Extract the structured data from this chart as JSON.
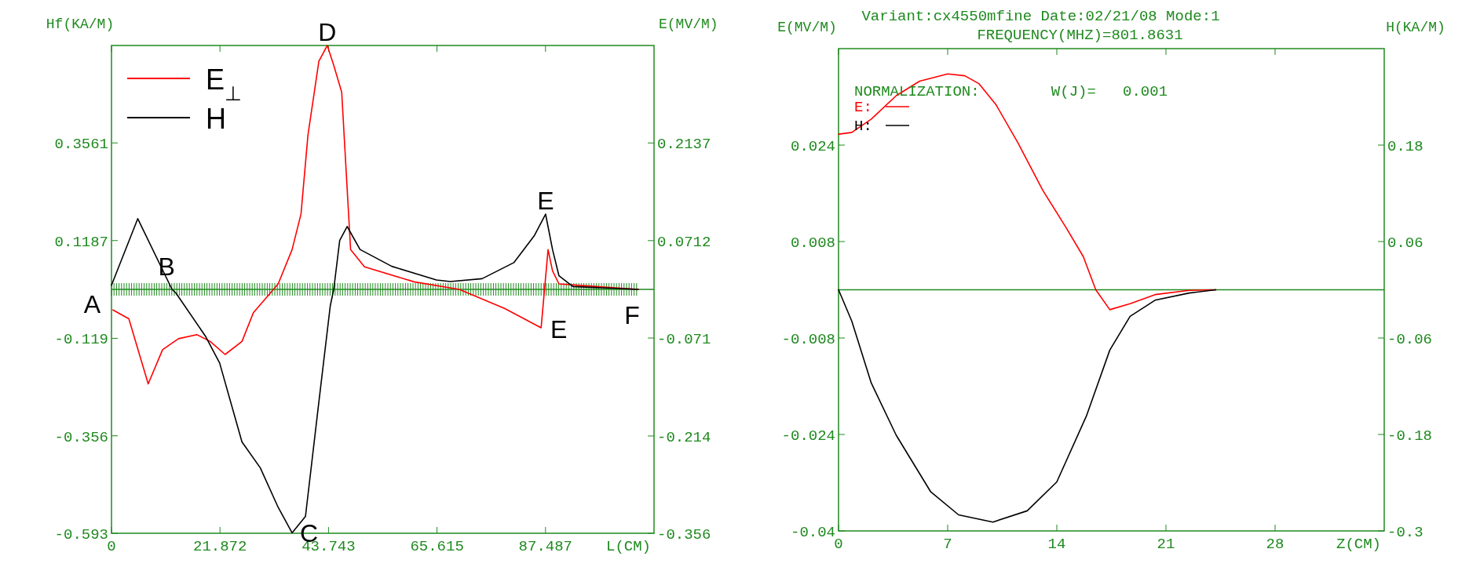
{
  "chart_data": [
    {
      "type": "line",
      "ylabel": "Hf(KA/M)",
      "y2label": "E(MV/M)",
      "xlabel": "L(CM)",
      "xlim": [
        0,
        109.36
      ],
      "xticks": [
        0,
        21.872,
        43.743,
        65.615,
        87.487
      ],
      "ylim": [
        -0.593,
        0.593
      ],
      "yticks": [
        -0.593,
        -0.356,
        -0.119,
        0.1187,
        0.3561
      ],
      "y2lim": [
        -0.356,
        0.356
      ],
      "y2ticks": [
        -0.356,
        -0.214,
        -0.071,
        0.0712,
        0.2137
      ],
      "legend": "top left",
      "grid": false,
      "ref_lines": [
        {
          "axis": "y",
          "value": 0,
          "color": "#1f8a1f"
        }
      ],
      "series": [
        {
          "name": "E$_{⊥}$",
          "color": "#ff0000",
          "axis": "y2",
          "x": [
            0.3,
            3.5,
            7.4,
            10.3,
            13.5,
            17.2,
            19.9,
            22.9,
            26.3,
            28.6,
            33.6,
            36.4,
            38.2,
            39.6,
            41.8,
            43.5,
            44.8,
            46.4,
            48.2,
            51.0,
            61.0,
            70.1,
            79.3,
            86.6,
            88.0,
            88.9,
            90.2,
            106.2
          ],
          "values": [
            -0.03,
            -0.043,
            -0.138,
            -0.088,
            -0.072,
            -0.066,
            -0.076,
            -0.095,
            -0.076,
            -0.034,
            0.008,
            0.058,
            0.11,
            0.225,
            0.333,
            0.356,
            0.327,
            0.288,
            0.058,
            0.033,
            0.011,
            0,
            -0.028,
            -0.056,
            0.058,
            0.027,
            0.008,
            0
          ]
        },
        {
          "name": "H",
          "color": "#000000",
          "x": [
            0,
            5.3,
            12.2,
            13.0,
            19.0,
            21.8,
            26.3,
            30.0,
            33.6,
            36.4,
            39.1,
            41.8,
            44.1,
            44.8,
            46.0,
            47.5,
            50.1,
            56.5,
            65.5,
            68.3,
            74.7,
            81.1,
            85.2,
            87.5,
            88.9,
            90.2,
            93.0,
            106.2
          ],
          "values": [
            0.01,
            0.172,
            0,
            -0.009,
            -0.115,
            -0.179,
            -0.371,
            -0.434,
            -0.53,
            -0.592,
            -0.552,
            -0.274,
            -0.04,
            0,
            0.119,
            0.153,
            0.097,
            0.056,
            0.023,
            0.019,
            0.026,
            0.065,
            0.13,
            0.183,
            0.097,
            0.033,
            0.007,
            0
          ]
        }
      ],
      "annotations": [
        {
          "text": "A",
          "x": 0,
          "y": 0
        },
        {
          "text": "B",
          "x": 11.1,
          "y": 0.022
        },
        {
          "text": "C",
          "x": 36.4,
          "y": -0.592
        },
        {
          "text": "D",
          "x": 43.5,
          "y": 0.593
        },
        {
          "text": "E",
          "x": 87.5,
          "y": 0.183
        },
        {
          "text": "E",
          "x": 86.9,
          "y": -0.095
        },
        {
          "text": "F",
          "x": 106.2,
          "y": 0
        }
      ]
    },
    {
      "type": "line",
      "title": "Variant:cx4550mfine  Date:02/21/08 Mode:1",
      "subtitle": "FREQUENCY(MHZ)=801.8631",
      "ylabel": "E(MV/M)",
      "y2label": "H(KA/M)",
      "xlabel": "Z(CM)",
      "xlim": [
        0,
        35
      ],
      "xticks": [
        0,
        7,
        14,
        21,
        28
      ],
      "ylim": [
        -0.04,
        0.04
      ],
      "yticks": [
        -0.04,
        -0.024,
        -0.008,
        0.008,
        0.024
      ],
      "y2lim": [
        -0.3,
        0.3
      ],
      "y2ticks": [
        -0.3,
        -0.18,
        -0.06,
        0.06,
        0.18
      ],
      "legend": "top left",
      "grid": false,
      "ref_lines": [
        {
          "axis": "y",
          "value": 0,
          "color": "#1f8a1f"
        }
      ],
      "series": [
        {
          "name": "E:",
          "color": "#ff0000",
          "x": [
            0,
            0.85,
            2.1,
            3.7,
            5.2,
            7.0,
            8.1,
            9.0,
            10.1,
            11.5,
            13.1,
            14.6,
            15.7,
            16.5,
            17.4,
            18.7,
            20.3,
            22.5,
            24.2
          ],
          "values": [
            0.0258,
            0.0261,
            0.0283,
            0.0322,
            0.0346,
            0.0358,
            0.0355,
            0.0342,
            0.0307,
            0.0244,
            0.0165,
            0.0103,
            0.0055,
            0,
            -0.0033,
            -0.0023,
            -0.0008,
            -0.0001,
            0
          ]
        },
        {
          "name": "H:",
          "color": "#000000",
          "axis": "y2",
          "x": [
            0,
            0.85,
            2.1,
            3.7,
            5.9,
            7.7,
            9.9,
            12.1,
            14.0,
            15.9,
            17.4,
            18.7,
            20.3,
            22.5,
            24.2
          ],
          "values": [
            0,
            -0.039,
            -0.116,
            -0.181,
            -0.251,
            -0.28,
            -0.289,
            -0.275,
            -0.239,
            -0.157,
            -0.075,
            -0.033,
            -0.013,
            -0.004,
            0
          ]
        }
      ],
      "annotations": [
        "NORMALIZATION:        W(J)=   0.001"
      ]
    }
  ]
}
